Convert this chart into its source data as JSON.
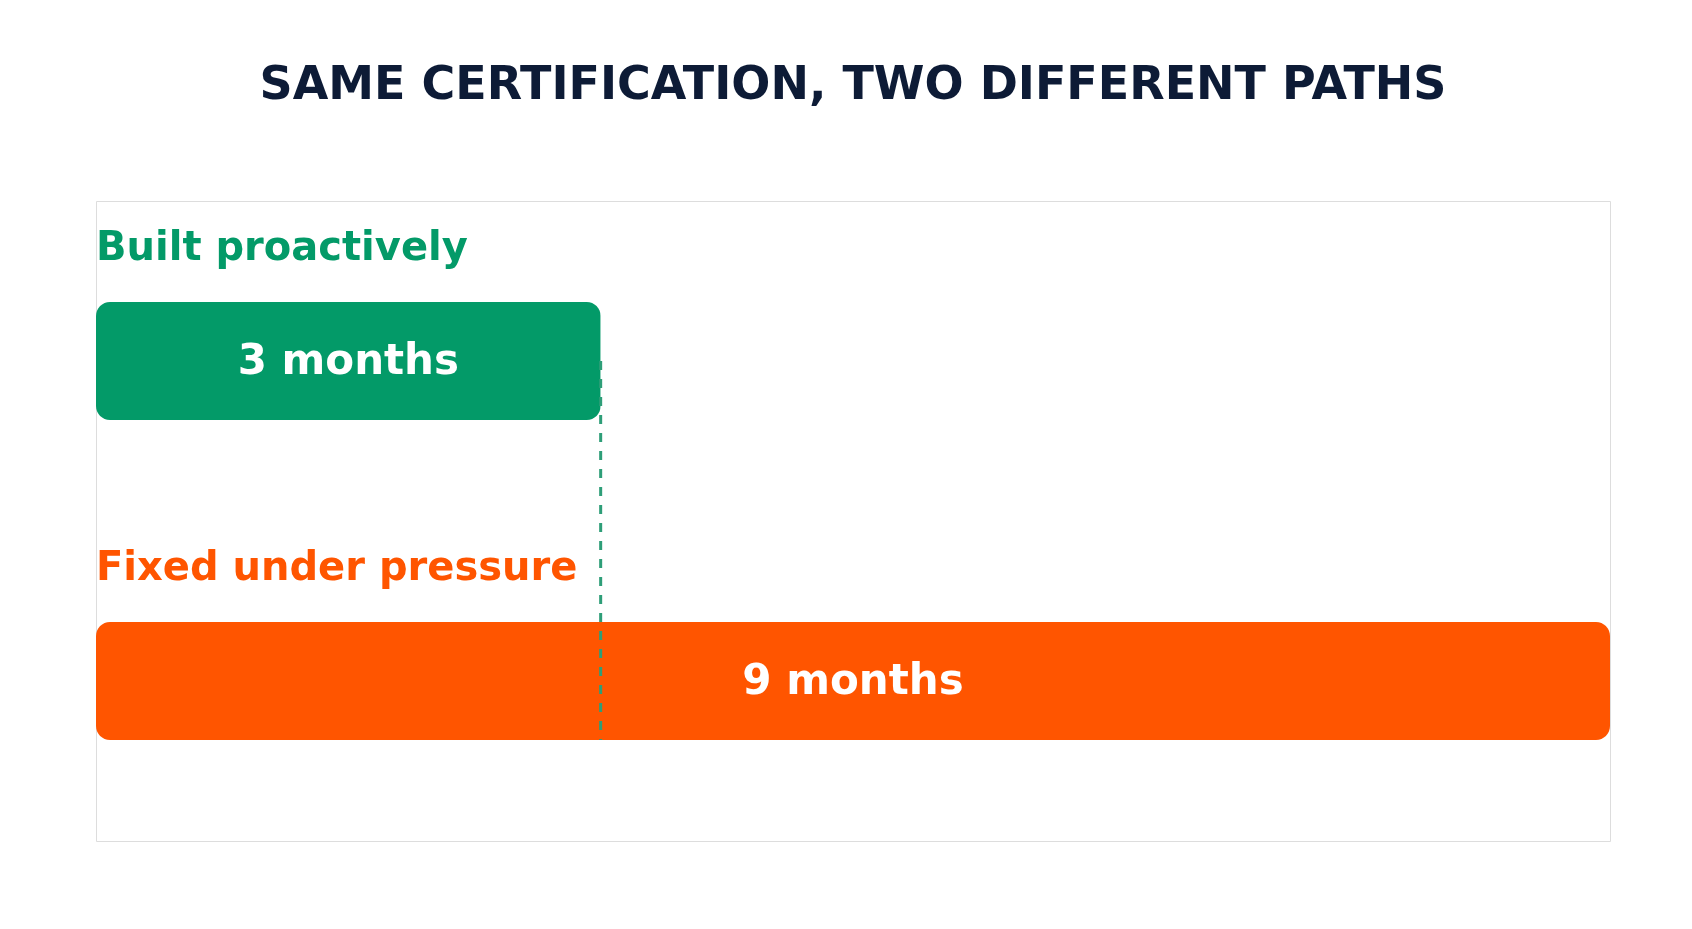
{
  "chart_data": {
    "type": "bar",
    "orientation": "horizontal",
    "title": "SAME CERTIFICATION, TWO DIFFERENT PATHS",
    "categories": [
      "Built proactively",
      "Fixed under pressure"
    ],
    "values": [
      3,
      9
    ],
    "colors": [
      "#039a68",
      "#ff5500"
    ],
    "value_labels": [
      "3 months",
      "9 months"
    ],
    "ref_lines": [
      {
        "axis": "x",
        "value": 3,
        "color": "#2e9e78",
        "line_style": "dashed"
      }
    ]
  }
}
